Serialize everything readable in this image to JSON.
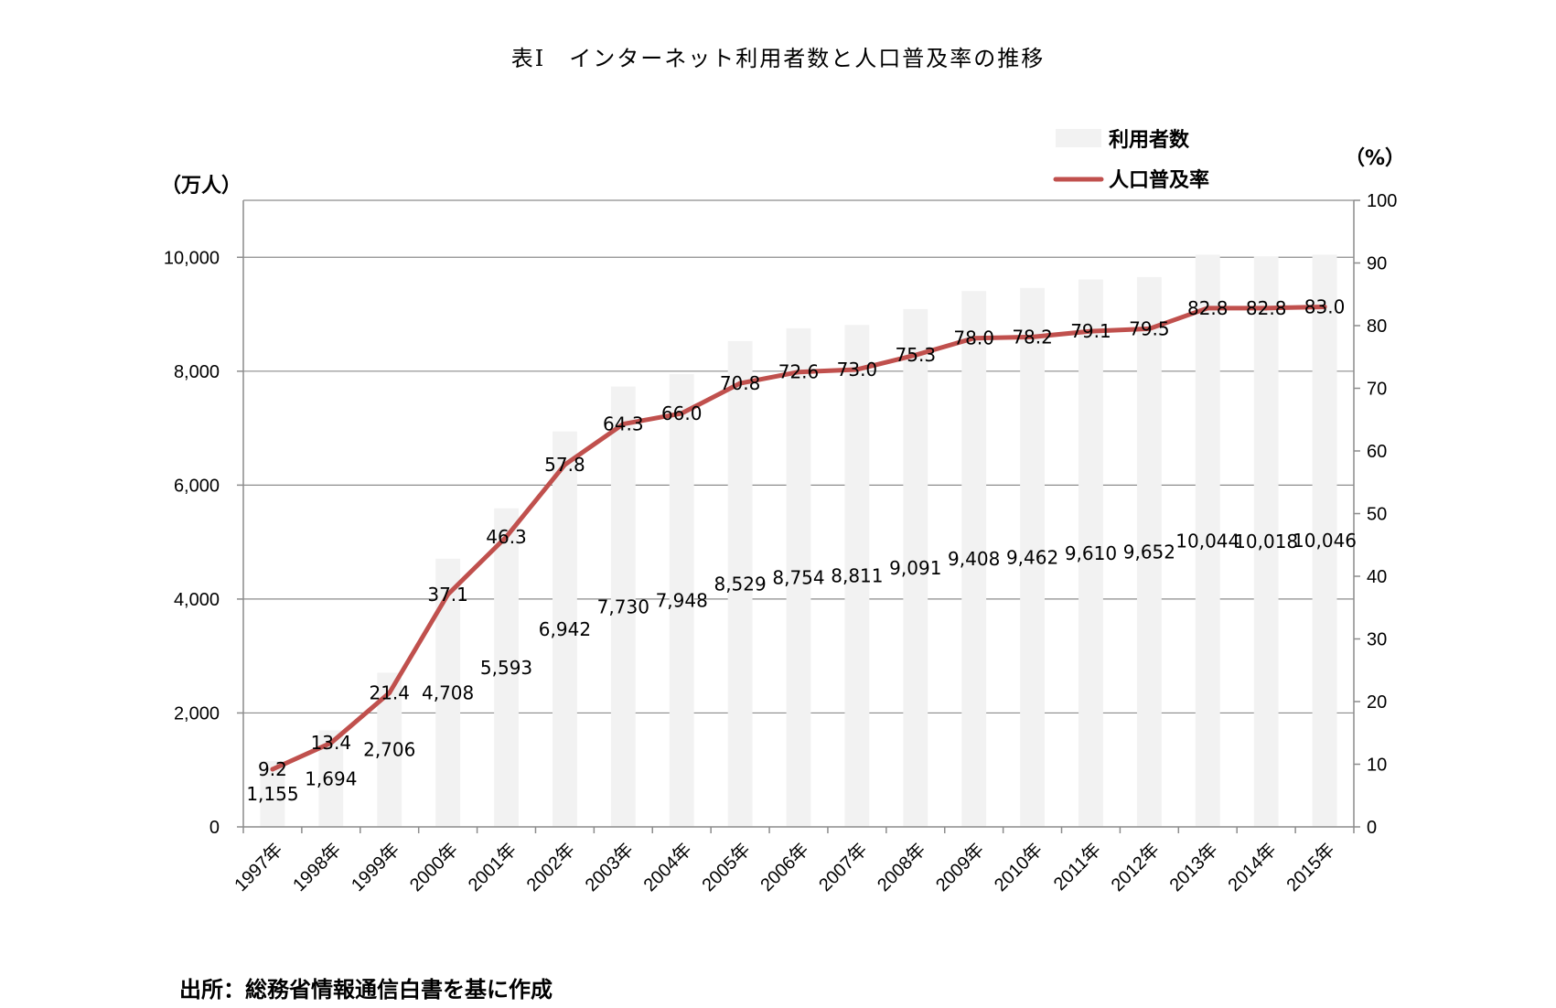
{
  "title": "表Ⅰ　インターネット利用者数と人口普及率の推移",
  "source": "出所：総務省情報通信白書を基に作成",
  "chart_data": {
    "type": "bar",
    "categories": [
      "1997年",
      "1998年",
      "1999年",
      "2000年",
      "2001年",
      "2002年",
      "2003年",
      "2004年",
      "2005年",
      "2006年",
      "2007年",
      "2008年",
      "2009年",
      "2010年",
      "2011年",
      "2012年",
      "2013年",
      "2014年",
      "2015年"
    ],
    "series": [
      {
        "name": "利用者数",
        "type": "bar",
        "axis": "left",
        "color": "#f2f2f2",
        "values": [
          1155,
          1694,
          2706,
          4708,
          5593,
          6942,
          7730,
          7948,
          8529,
          8754,
          8811,
          9091,
          9408,
          9462,
          9610,
          9652,
          10044,
          10018,
          10046
        ],
        "labels": [
          "1,155",
          "1,694",
          "2,706",
          "4,708",
          "5,593",
          "6,942",
          "7,730",
          "7,948",
          "8,529",
          "8,754",
          "8,811",
          "9,091",
          "9,408",
          "9,462",
          "9,610",
          "9,652",
          "10,044",
          "10,018",
          "10,046"
        ]
      },
      {
        "name": "人口普及率",
        "type": "line",
        "axis": "right",
        "color": "#c0504d",
        "values": [
          9.2,
          13.4,
          21.4,
          37.1,
          46.3,
          57.8,
          64.3,
          66.0,
          70.8,
          72.6,
          73.0,
          75.3,
          78.0,
          78.2,
          79.1,
          79.5,
          82.8,
          82.8,
          83.0
        ],
        "labels": [
          "9.2",
          "13.4",
          "21.4",
          "37.1",
          "46.3",
          "57.8",
          "64.3",
          "66.0",
          "70.8",
          "72.6",
          "73.0",
          "75.3",
          "78.0",
          "78.2",
          "79.1",
          "79.5",
          "82.8",
          "82.8",
          "83.0"
        ]
      }
    ],
    "y_left": {
      "label": "（万人）",
      "ylim": [
        0,
        11000
      ],
      "ticks": [
        0,
        2000,
        4000,
        6000,
        8000,
        10000
      ],
      "tick_labels": [
        "0",
        "2,000",
        "4,000",
        "6,000",
        "8,000",
        "10,000"
      ]
    },
    "y_right": {
      "label": "（%）",
      "ylim": [
        0,
        100
      ],
      "ticks": [
        0,
        10,
        20,
        30,
        40,
        50,
        60,
        70,
        80,
        90,
        100
      ],
      "tick_labels": [
        "0",
        "10",
        "20",
        "30",
        "40",
        "50",
        "60",
        "70",
        "80",
        "90",
        "100"
      ]
    },
    "grid": true,
    "legend_position": "top-right"
  }
}
